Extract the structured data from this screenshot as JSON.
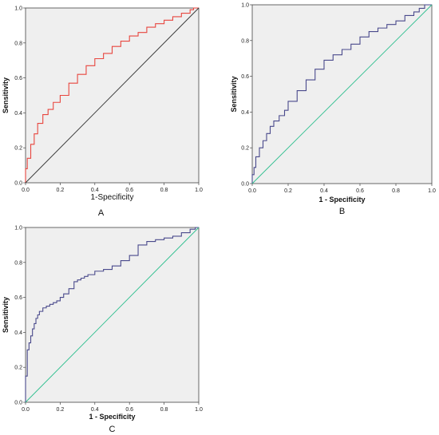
{
  "chart_data": [
    {
      "type": "line",
      "panel_label": "A",
      "xlabel": "1-Specificity",
      "ylabel": "Sensitivity",
      "xlim": [
        0,
        1
      ],
      "ylim": [
        0,
        1
      ],
      "x_ticks": [
        "0.0",
        "0.2",
        "0.4",
        "0.6",
        "0.8",
        "1.0"
      ],
      "y_ticks": [
        "0.0",
        "0.2",
        "0.4",
        "0.6",
        "0.8",
        "1.0"
      ],
      "grid": false,
      "legend": "none",
      "series": [
        {
          "role": "curve",
          "color": "#e8463f",
          "style": "step",
          "x": [
            0,
            0.01,
            0.03,
            0.05,
            0.07,
            0.1,
            0.13,
            0.16,
            0.2,
            0.25,
            0.3,
            0.35,
            0.4,
            0.45,
            0.5,
            0.55,
            0.6,
            0.65,
            0.7,
            0.75,
            0.8,
            0.85,
            0.9,
            0.95,
            0.97,
            1
          ],
          "y": [
            0,
            0.08,
            0.14,
            0.22,
            0.28,
            0.34,
            0.39,
            0.42,
            0.46,
            0.5,
            0.57,
            0.62,
            0.67,
            0.71,
            0.74,
            0.78,
            0.81,
            0.84,
            0.86,
            0.89,
            0.91,
            0.93,
            0.95,
            0.97,
            0.99,
            1
          ]
        },
        {
          "role": "reference",
          "color": "#333333",
          "style": "line",
          "x": [
            0,
            1
          ],
          "y": [
            0,
            1
          ]
        }
      ]
    },
    {
      "type": "line",
      "panel_label": "B",
      "xlabel": "1 - Specificity",
      "ylabel": "Sensitivity",
      "xlim": [
        0,
        1
      ],
      "ylim": [
        0,
        1
      ],
      "x_ticks": [
        "0.0",
        "0.2",
        "0.4",
        "0.6",
        "0.8",
        "1.0"
      ],
      "y_ticks": [
        "0.0",
        "0.2",
        "0.4",
        "0.6",
        "0.8",
        "1.0"
      ],
      "grid": false,
      "legend": "none",
      "series": [
        {
          "role": "curve",
          "color": "#4a4a8c",
          "style": "step",
          "x": [
            0,
            0.01,
            0.02,
            0.04,
            0.06,
            0.08,
            0.1,
            0.12,
            0.15,
            0.18,
            0.2,
            0.25,
            0.3,
            0.35,
            0.4,
            0.45,
            0.5,
            0.55,
            0.6,
            0.65,
            0.7,
            0.75,
            0.8,
            0.85,
            0.9,
            0.93,
            0.96,
            1
          ],
          "y": [
            0,
            0.05,
            0.09,
            0.15,
            0.2,
            0.24,
            0.28,
            0.32,
            0.35,
            0.38,
            0.41,
            0.46,
            0.52,
            0.58,
            0.64,
            0.69,
            0.72,
            0.75,
            0.78,
            0.82,
            0.85,
            0.87,
            0.89,
            0.91,
            0.94,
            0.96,
            0.98,
            1
          ]
        },
        {
          "role": "reference",
          "color": "#2dbf8e",
          "style": "line",
          "x": [
            0,
            1
          ],
          "y": [
            0,
            1
          ]
        }
      ]
    },
    {
      "type": "line",
      "panel_label": "C",
      "xlabel": "1 - Specificity",
      "ylabel": "Sensitivity",
      "xlim": [
        0,
        1
      ],
      "ylim": [
        0,
        1
      ],
      "x_ticks": [
        "0.0",
        "0.2",
        "0.4",
        "0.6",
        "0.8",
        "1.0"
      ],
      "y_ticks": [
        "0.0",
        "0.2",
        "0.4",
        "0.6",
        "0.8",
        "1.0"
      ],
      "grid": false,
      "legend": "none",
      "series": [
        {
          "role": "curve",
          "color": "#4a4a8c",
          "style": "step",
          "x": [
            0,
            0.01,
            0.02,
            0.03,
            0.04,
            0.05,
            0.06,
            0.07,
            0.08,
            0.1,
            0.12,
            0.14,
            0.16,
            0.18,
            0.2,
            0.22,
            0.25,
            0.28,
            0.3,
            0.32,
            0.34,
            0.36,
            0.4,
            0.45,
            0.5,
            0.55,
            0.6,
            0.65,
            0.7,
            0.75,
            0.8,
            0.85,
            0.9,
            0.95,
            0.98,
            1
          ],
          "y": [
            0,
            0.15,
            0.3,
            0.34,
            0.38,
            0.42,
            0.45,
            0.48,
            0.5,
            0.52,
            0.54,
            0.55,
            0.56,
            0.57,
            0.58,
            0.6,
            0.62,
            0.65,
            0.69,
            0.7,
            0.71,
            0.72,
            0.73,
            0.75,
            0.76,
            0.78,
            0.81,
            0.84,
            0.9,
            0.92,
            0.93,
            0.94,
            0.95,
            0.97,
            0.99,
            1
          ]
        },
        {
          "role": "reference",
          "color": "#2dbf8e",
          "style": "line",
          "x": [
            0,
            1
          ],
          "y": [
            0,
            1
          ]
        }
      ]
    }
  ]
}
